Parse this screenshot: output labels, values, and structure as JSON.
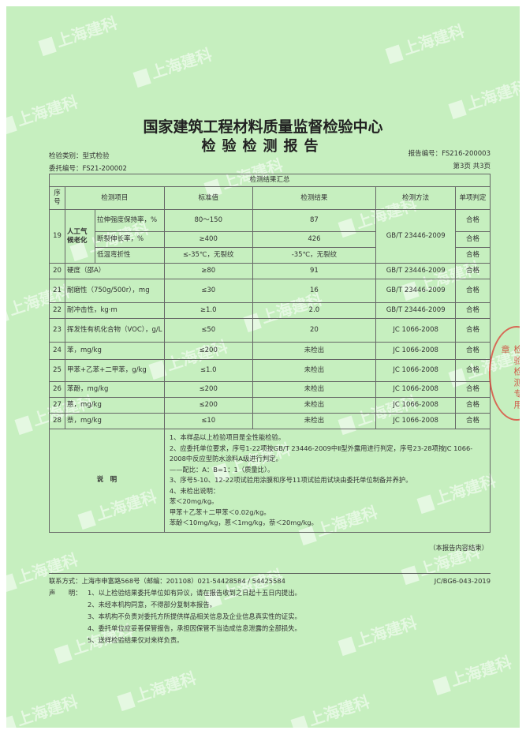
{
  "watermark": "上海建科",
  "title": "国家建筑工程材料质量监督检验中心",
  "subtitle": "检验检测报告",
  "meta": {
    "test_type": "检验类别：型式检验",
    "commission_no": "委托编号：FS21-200002",
    "report_no": "报告编号：FS216-200003",
    "page": "第3页 共3页"
  },
  "table": {
    "caption": "检测结果汇总",
    "headers": [
      "序号",
      "检测项目",
      "标准值",
      "检测结果",
      "检测方法",
      "单项判定"
    ],
    "group19": {
      "no": "19",
      "item": "人工气候老化",
      "method": "GB/T 23446-2009",
      "sub": [
        {
          "item": "拉伸强度保持率，%",
          "std": "80～150",
          "result": "87",
          "verdict": "合格"
        },
        {
          "item": "断裂伸长率，%",
          "std": "≥400",
          "result": "426",
          "verdict": "合格"
        },
        {
          "item": "低温弯折性",
          "std": "≤-35℃，无裂纹",
          "result": "-35℃，无裂纹",
          "verdict": "合格"
        }
      ]
    },
    "rows": [
      {
        "no": "20",
        "item": "硬度（邵A）",
        "std": "≥80",
        "result": "91",
        "method": "GB/T 23446-2009",
        "verdict": "合格"
      },
      {
        "no": "21",
        "item": "耐磨性（750g/500r），mg",
        "std": "≤30",
        "result": "16",
        "method": "GB/T 23446-2009",
        "verdict": "合格"
      },
      {
        "no": "22",
        "item": "耐冲击性，kg·m",
        "std": "≥1.0",
        "result": "2.0",
        "method": "GB/T 23446-2009",
        "verdict": "合格"
      },
      {
        "no": "23",
        "item": "挥发性有机化合物（VOC），g/L",
        "std": "≤50",
        "result": "20",
        "method": "JC 1066-2008",
        "verdict": "合格"
      },
      {
        "no": "24",
        "item": "苯，mg/kg",
        "std": "≤200",
        "result": "未检出",
        "method": "JC 1066-2008",
        "verdict": "合格"
      },
      {
        "no": "25",
        "item": "甲苯+乙苯+二甲苯，g/kg",
        "std": "≤1.0",
        "result": "未检出",
        "method": "JC 1066-2008",
        "verdict": "合格"
      },
      {
        "no": "26",
        "item": "苯酚，mg/kg",
        "std": "≤200",
        "result": "未检出",
        "method": "JC 1066-2008",
        "verdict": "合格"
      },
      {
        "no": "27",
        "item": "蒽，mg/kg",
        "std": "≤200",
        "result": "未检出",
        "method": "JC 1066-2008",
        "verdict": "合格"
      },
      {
        "no": "28",
        "item": "萘，mg/kg",
        "std": "≤10",
        "result": "未检出",
        "method": "JC 1066-2008",
        "verdict": "合格"
      }
    ],
    "notes_label": "说　明",
    "notes": [
      "1、本样品以上检验项目是全性能检验。",
      "2、应委托单位要求，序号1-22项按GB/T 23446-2009中Ⅱ型外露用进行判定，序号23-28项按JC 1066-2008中反应型防水涂料A级进行判定。",
      "——配比：A：B=1：1（质量比）。",
      "3、序号5-10、12-22项试验用涂膜和序号11项试验用试块由委托单位制备并养护。",
      "4、未检出说明：",
      "苯＜20mg/kg。",
      "甲苯＋乙苯＋二甲苯＜0.02g/kg。",
      "苯酚＜10mg/kg，蒽＜1mg/kg，萘＜20mg/kg。"
    ]
  },
  "end_note": "（本报告内容结束）",
  "footer": {
    "contact": "联系方式：上海市申富路568号（邮编：201108）021-54428584 / 54425584",
    "code": "JC/BG6-043-2019",
    "statement_label": "声　　明：",
    "statements": [
      "1、以上检验结果委托单位如有异议，请在报告收到之日起十五日内提出。",
      "2、未经本机构同意，不得部分复制本报告。",
      "3、本机构不负责对委托方所提供样品相关信息及企业信息真实性的证实。",
      "4、委托单位应妥善保管报告，承担因保管不当造成信息泄露的全部损失。",
      "5、送样检验结果仅对来样负责。"
    ]
  },
  "stamp": "检验检测专用章"
}
